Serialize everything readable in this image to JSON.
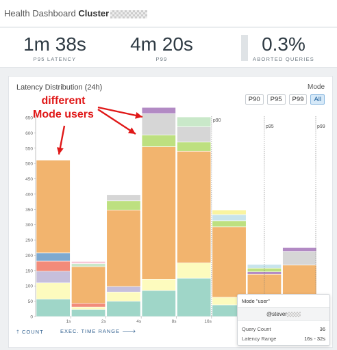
{
  "header": {
    "title_prefix": "Health Dashboard",
    "title_bold": "Cluster"
  },
  "stats": [
    {
      "value": "1m 38s",
      "label": "P95 LATENCY"
    },
    {
      "value": "4m 20s",
      "label": "P99"
    },
    {
      "value": "0.3%",
      "label": "ABORTED QUERIES"
    }
  ],
  "card": {
    "title": "Latency Distribution (24h)",
    "mode_label": "Mode",
    "filters": [
      "P90",
      "P95",
      "P99",
      "All"
    ],
    "active_filter": "All"
  },
  "footer": {
    "count_label": "COUNT",
    "range_label": "EXEC. TIME RANGE"
  },
  "annotation": {
    "line1": "different",
    "line2": "Mode users"
  },
  "tooltip": {
    "title": "Mode \"user\"",
    "user": "@stever",
    "rows": [
      {
        "label": "Query Count",
        "value": "36"
      },
      {
        "label": "Latency Range",
        "value": "16s - 32s"
      }
    ]
  },
  "chart_data": {
    "type": "bar",
    "stacked": true,
    "yticks": [
      0,
      50,
      100,
      150,
      200,
      250,
      300,
      350,
      400,
      450,
      500,
      550,
      600,
      650
    ],
    "ylim": [
      0,
      650
    ],
    "xticks": [
      "1s",
      "2s",
      "4s",
      "8s",
      "16s"
    ],
    "series_colors": [
      "#9fd6c8",
      "#fdfbbe",
      "#c6bfdc",
      "#f28b7a",
      "#7ea9cf",
      "#f2b46e",
      "#bde080",
      "#d6d6d6",
      "#c9e8c9",
      "#b28ac4",
      "#f9f4a0",
      "#f8c8d8",
      "#c8e4ec"
    ],
    "bars": [
      {
        "segments": [
          {
            "c": 0,
            "v": 57
          },
          {
            "c": 1,
            "v": 53
          },
          {
            "c": 2,
            "v": 38
          },
          {
            "c": 3,
            "v": 33
          },
          {
            "c": 4,
            "v": 27
          },
          {
            "c": 5,
            "v": 303
          }
        ]
      },
      {
        "segments": [
          {
            "c": 0,
            "v": 23
          },
          {
            "c": 1,
            "v": 8
          },
          {
            "c": 3,
            "v": 12
          },
          {
            "c": 5,
            "v": 120
          },
          {
            "c": 8,
            "v": 10
          },
          {
            "c": 11,
            "v": 7
          }
        ]
      },
      {
        "segments": [
          {
            "c": 0,
            "v": 50
          },
          {
            "c": 1,
            "v": 30
          },
          {
            "c": 2,
            "v": 18
          },
          {
            "c": 5,
            "v": 250
          },
          {
            "c": 6,
            "v": 30
          },
          {
            "c": 7,
            "v": 20
          }
        ]
      },
      {
        "segments": [
          {
            "c": 0,
            "v": 85
          },
          {
            "c": 1,
            "v": 37
          },
          {
            "c": 5,
            "v": 433
          },
          {
            "c": 6,
            "v": 38
          },
          {
            "c": 7,
            "v": 70
          },
          {
            "c": 9,
            "v": 20
          }
        ]
      },
      {
        "segments": [
          {
            "c": 0,
            "v": 125
          },
          {
            "c": 1,
            "v": 50
          },
          {
            "c": 5,
            "v": 365
          },
          {
            "c": 6,
            "v": 30
          },
          {
            "c": 7,
            "v": 50
          },
          {
            "c": 8,
            "v": 32
          }
        ]
      },
      {
        "segments": [
          {
            "c": 0,
            "v": 38
          },
          {
            "c": 1,
            "v": 25
          },
          {
            "c": 5,
            "v": 230
          },
          {
            "c": 6,
            "v": 20
          },
          {
            "c": 12,
            "v": 20
          },
          {
            "c": 10,
            "v": 15
          }
        ]
      },
      {
        "segments": [
          {
            "c": 0,
            "v": 5
          },
          {
            "c": 5,
            "v": 133
          },
          {
            "c": 9,
            "v": 8
          },
          {
            "c": 6,
            "v": 12
          },
          {
            "c": 12,
            "v": 12
          }
        ]
      },
      {
        "segments": [
          {
            "c": 0,
            "v": 5
          },
          {
            "c": 5,
            "v": 163
          },
          {
            "c": 7,
            "v": 45
          },
          {
            "c": 9,
            "v": 12
          }
        ]
      }
    ],
    "percentile_lines": [
      {
        "label": "p90",
        "after_bar": 5
      },
      {
        "label": "p95",
        "after_bar": 6
      },
      {
        "label": "p99",
        "after_bar": 7
      }
    ]
  }
}
